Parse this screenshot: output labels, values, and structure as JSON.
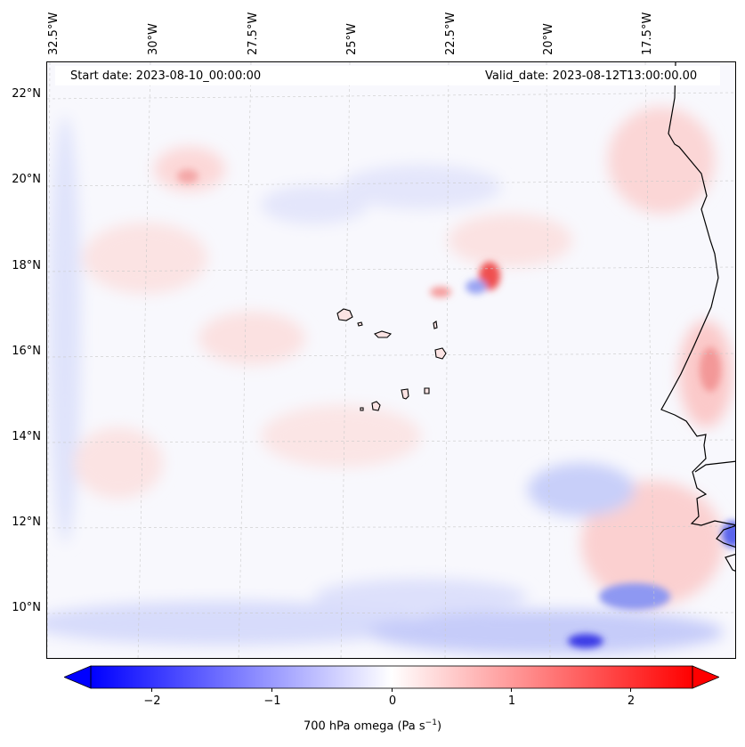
{
  "map": {
    "start_date_text": "Start date: 2023-08-10_00:00:00",
    "valid_date_text": "Valid_date: 2023-08-12T13:00:00.00",
    "lon_labels": [
      "32.5°W",
      "30°W",
      "27.5°W",
      "25°W",
      "22.5°W",
      "20°W",
      "17.5°W"
    ],
    "lat_labels": [
      "22°N",
      "20°N",
      "18°N",
      "16°N",
      "14°N",
      "12°N",
      "10°N"
    ],
    "field": "700 hPa omega",
    "colormap": "bwr"
  },
  "colorbar": {
    "ticks": [
      "−2",
      "−1",
      "0",
      "1",
      "2"
    ],
    "tick_values": [
      -2,
      -1,
      0,
      1,
      2
    ],
    "range": [
      -2.5,
      2.5
    ],
    "label_main": "700 hPa omega (Pa s",
    "label_sup": "−1",
    "label_end": ")",
    "min_color": "#0000ff",
    "mid_color": "#ffffff",
    "max_color": "#ff0000"
  }
}
